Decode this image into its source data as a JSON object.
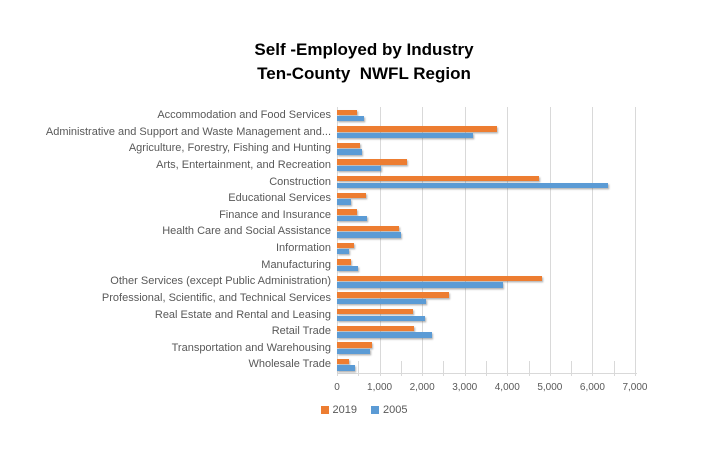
{
  "chart_data": {
    "type": "bar",
    "orientation": "horizontal",
    "title_lines": [
      "Self -Employed by Industry",
      "Ten-County  NWFL Region"
    ],
    "categories": [
      "Accommodation and Food Services",
      "Administrative and Support and Waste Management and...",
      "Agriculture, Forestry, Fishing and Hunting",
      "Arts, Entertainment, and Recreation",
      "Construction",
      "Educational Services",
      "Finance and Insurance",
      "Health Care and Social Assistance",
      "Information",
      "Manufacturing",
      "Other Services (except Public Administration)",
      "Professional, Scientific, and Technical Services",
      "Real Estate and Rental and Leasing",
      "Retail Trade",
      "Transportation and Warehousing",
      "Wholesale Trade"
    ],
    "series": [
      {
        "name": "2019",
        "color": "#ED7D31",
        "values": [
          470,
          3760,
          540,
          1650,
          4740,
          680,
          480,
          1450,
          400,
          340,
          4820,
          2620,
          1790,
          1800,
          830,
          290
        ]
      },
      {
        "name": "2005",
        "color": "#5B9BD5",
        "values": [
          630,
          3200,
          580,
          1030,
          6360,
          330,
          700,
          1500,
          280,
          500,
          3900,
          2100,
          2060,
          2230,
          770,
          430
        ]
      }
    ],
    "x_ticks": [
      "0",
      "1,000",
      "2,000",
      "3,000",
      "4,000",
      "5,000",
      "6,000",
      "7,000"
    ],
    "xlim": [
      0,
      7000
    ],
    "x_major_unit": 1000,
    "x_minor_unit": 500,
    "grid": true,
    "legend_position": "bottom",
    "colors": {
      "label": "#595959",
      "gridline": "#D9D9D9",
      "title": "#000000",
      "background": "#FFFFFF"
    }
  }
}
